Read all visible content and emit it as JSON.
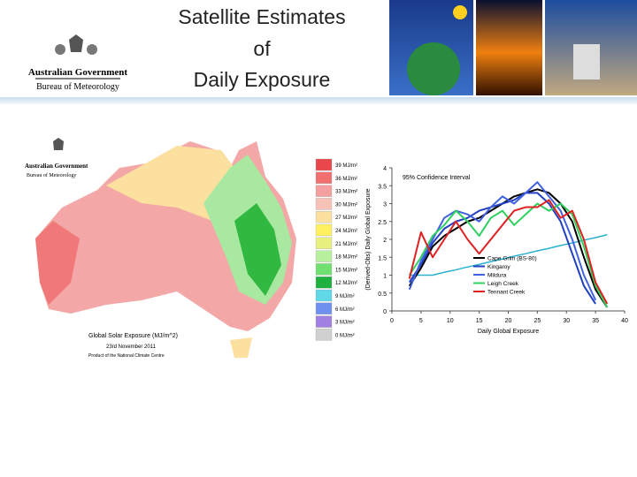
{
  "header": {
    "title": [
      "Satellite Estimates",
      "of",
      "Daily Exposure"
    ],
    "logo": [
      "Australian Government",
      "Bureau of Meteorology"
    ]
  },
  "map": {
    "logo": [
      "Australian Government",
      "Bureau of Meteorology"
    ],
    "legend": [
      {
        "label": "39 MJ/m²",
        "color": "#e8484c"
      },
      {
        "label": "36 MJ/m²",
        "color": "#f07070"
      },
      {
        "label": "33 MJ/m²",
        "color": "#f4a0a0"
      },
      {
        "label": "30 MJ/m²",
        "color": "#f7c2b8"
      },
      {
        "label": "27 MJ/m²",
        "color": "#fbe0a0"
      },
      {
        "label": "24 MJ/m²",
        "color": "#fff060"
      },
      {
        "label": "21 MJ/m²",
        "color": "#e8f080"
      },
      {
        "label": "18 MJ/m²",
        "color": "#b8f0a0"
      },
      {
        "label": "15 MJ/m²",
        "color": "#70e070"
      },
      {
        "label": "12 MJ/m²",
        "color": "#20b040"
      },
      {
        "label": "9 MJ/m²",
        "color": "#60d8e8"
      },
      {
        "label": "6 MJ/m²",
        "color": "#7090f0"
      },
      {
        "label": "3 MJ/m²",
        "color": "#a080e0"
      },
      {
        "label": "0 MJ/m²",
        "color": "#d0d0d0"
      }
    ],
    "caption": [
      "Global Solar Exposure (MJ/m^2)",
      "23rd November 2011",
      "Product of the National Climate Centre"
    ]
  },
  "chart_data": {
    "type": "line",
    "annotation": "95% Confidence Interval",
    "xlabel": "Daily Global Exposure",
    "ylabel": "(Derived-Obs) Daily Global Exposure",
    "x": [
      3,
      5,
      7,
      9,
      11,
      13,
      15,
      17,
      19,
      21,
      23,
      25,
      27,
      29,
      31,
      33,
      35,
      37
    ],
    "xlim": [
      0,
      40
    ],
    "xticks": [
      0,
      5,
      10,
      15,
      20,
      25,
      30,
      35,
      40
    ],
    "ylim": [
      0,
      4
    ],
    "yticks": [
      0,
      0.5,
      1,
      1.5,
      2,
      2.5,
      3,
      3.5,
      4
    ],
    "series": [
      {
        "color": "#2ab0d0",
        "values": [
          1,
          1,
          1,
          1.08,
          1.15,
          1.23,
          1.3,
          1.38,
          1.45,
          1.53,
          1.6,
          1.68,
          1.75,
          1.83,
          1.9,
          1.98,
          2.05,
          2.13
        ]
      },
      {
        "name": "Cape Grim (BS-80)",
        "color": "#000000",
        "values": [
          0.7,
          1.2,
          1.8,
          2.1,
          2.3,
          2.5,
          2.6,
          2.8,
          3.0,
          3.2,
          3.3,
          3.4,
          3.3,
          3.0,
          2.5,
          1.5,
          0.6,
          0.1
        ]
      },
      {
        "name": "Kingaroy",
        "color": "#2040c0",
        "values": [
          0.8,
          1.3,
          1.9,
          2.3,
          2.5,
          2.6,
          2.8,
          2.9,
          3.0,
          3.1,
          3.3,
          3.3,
          3.0,
          2.5,
          1.6,
          0.7,
          0.2,
          null
        ]
      },
      {
        "name": "Mildura",
        "color": "#4060e0",
        "values": [
          0.6,
          1.4,
          2.0,
          2.6,
          2.8,
          2.7,
          2.5,
          2.9,
          3.2,
          3.0,
          3.3,
          3.6,
          3.2,
          2.8,
          2.0,
          1.0,
          0.3,
          null
        ]
      },
      {
        "name": "Leigh Creek",
        "color": "#30d060",
        "values": [
          1.0,
          1.5,
          2.1,
          2.4,
          2.8,
          2.5,
          2.1,
          2.6,
          2.8,
          2.4,
          2.7,
          3.0,
          2.8,
          3.0,
          2.7,
          1.8,
          0.7,
          0.1
        ]
      },
      {
        "name": "Tennant Creek",
        "color": "#e02020",
        "values": [
          0.9,
          2.2,
          1.5,
          2.0,
          2.5,
          2.0,
          1.6,
          2.0,
          2.4,
          2.8,
          2.9,
          2.9,
          3.1,
          2.6,
          2.8,
          2.0,
          0.8,
          0.2
        ]
      }
    ]
  }
}
